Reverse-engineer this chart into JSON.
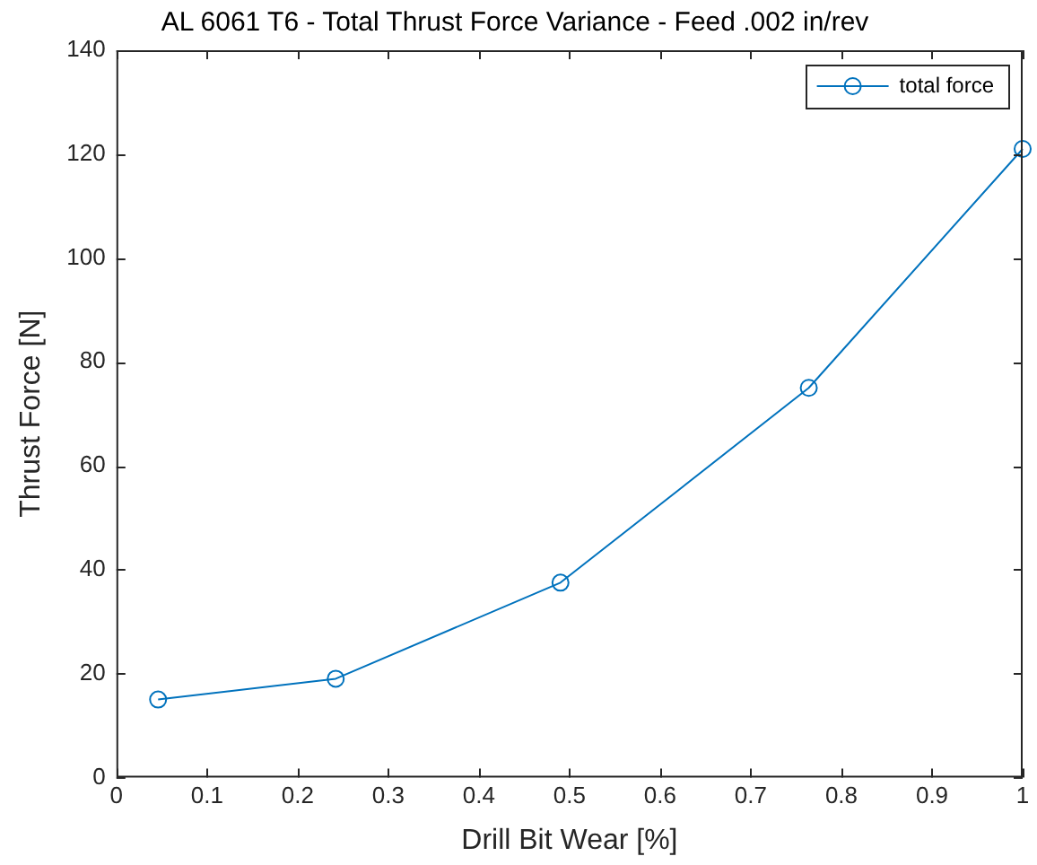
{
  "chart_data": {
    "type": "line",
    "title": "AL 6061 T6 - Total Thrust Force Variance - Feed .002 in/rev",
    "xlabel": "Drill Bit Wear [%]",
    "ylabel": "Thrust Force [N]",
    "x": [
      0.046,
      0.242,
      0.49,
      0.764,
      1.0
    ],
    "series": [
      {
        "name": "total force",
        "color": "#0072bd",
        "values": [
          15,
          19,
          37.5,
          75,
          121
        ]
      }
    ],
    "xlim": [
      0,
      1
    ],
    "xticks": [
      0,
      0.1,
      0.2,
      0.3,
      0.4,
      0.5,
      0.6,
      0.7,
      0.8,
      0.9,
      1
    ],
    "ylim": [
      0,
      140
    ],
    "yticks": [
      0,
      20,
      40,
      60,
      80,
      100,
      120,
      140
    ],
    "legend": "top right",
    "marker": "circle",
    "line_style": "solid",
    "grid": false
  }
}
